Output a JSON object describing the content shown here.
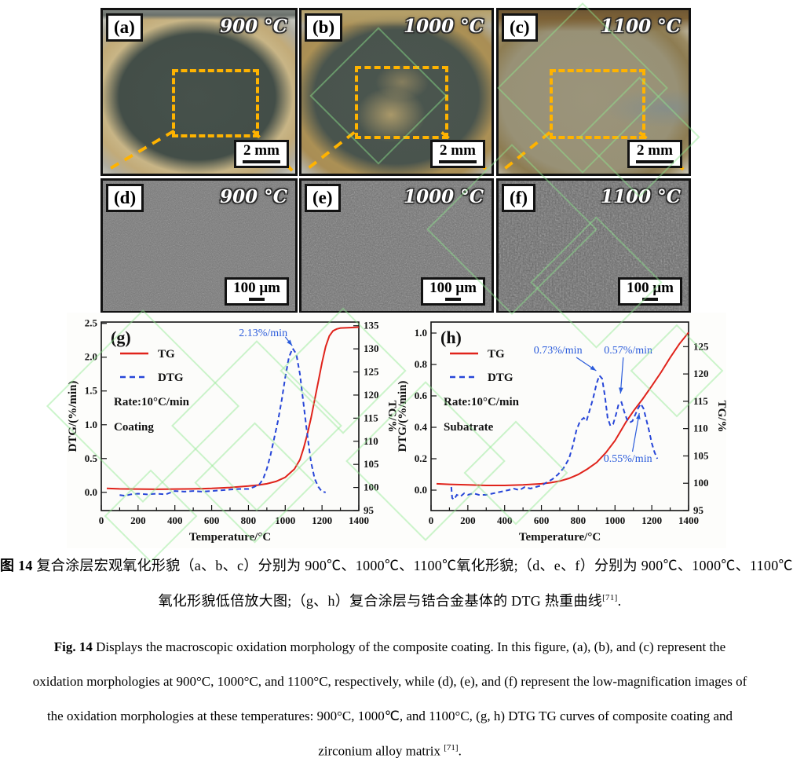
{
  "colors": {
    "dashed_box_orange": "#ffb300",
    "tg_red": "#e0231b",
    "dtg_blue": "#2746d8",
    "annotation_blue": "#2a5bdb",
    "watermark_green": "#8fe98f"
  },
  "figure": {
    "row1": [
      {
        "label": "(a)",
        "temp": "900 °C",
        "scale_bar": "2 mm"
      },
      {
        "label": "(b)",
        "temp": "1000 °C",
        "scale_bar": "2 mm"
      },
      {
        "label": "(c)",
        "temp": "1100 °C",
        "scale_bar": "2 mm"
      }
    ],
    "row2": [
      {
        "label": "(d)",
        "temp": "900 °C",
        "scale_bar": "100 μm"
      },
      {
        "label": "(e)",
        "temp": "1000 °C",
        "scale_bar": "100 μm"
      },
      {
        "label": "(f)",
        "temp": "1100 °C",
        "scale_bar": "100 μm"
      }
    ]
  },
  "chart_data": [
    {
      "id": "g",
      "type": "line",
      "panel_label": "(g)",
      "xlabel": "Temperature/°C",
      "ylabel_left": "DTG/(%/min)",
      "ylabel_right": "TG/%",
      "xlim": [
        0,
        1400
      ],
      "xticks": [
        0,
        200,
        400,
        600,
        800,
        1000,
        1200,
        1400
      ],
      "x_minor_step": 100,
      "ylim_left": [
        -0.27,
        2.52
      ],
      "yticks_left": [
        0.0,
        0.5,
        1.0,
        1.5,
        2.0,
        2.5
      ],
      "ytick_decimals": 1,
      "ylim_right": [
        95,
        135.8
      ],
      "yticks_right": [
        95,
        100,
        105,
        110,
        115,
        120,
        125,
        130,
        135
      ],
      "legend": {
        "tg": "TG",
        "dtg": "DTG",
        "rate": "Rate:10°C/min",
        "sample": "Coating"
      },
      "series": [
        {
          "name": "TG",
          "axis": "right",
          "color": "#e0231b",
          "style": "solid",
          "points": [
            [
              30,
              99.8
            ],
            [
              100,
              99.7
            ],
            [
              200,
              99.65
            ],
            [
              300,
              99.6
            ],
            [
              400,
              99.65
            ],
            [
              500,
              99.7
            ],
            [
              600,
              99.8
            ],
            [
              700,
              100.0
            ],
            [
              800,
              100.3
            ],
            [
              850,
              100.5
            ],
            [
              900,
              100.8
            ],
            [
              950,
              101.3
            ],
            [
              1000,
              102.2
            ],
            [
              1050,
              104.0
            ],
            [
              1080,
              106.0
            ],
            [
              1100,
              108.5
            ],
            [
              1120,
              111.5
            ],
            [
              1140,
              115.0
            ],
            [
              1160,
              119.0
            ],
            [
              1180,
              123.0
            ],
            [
              1200,
              127.0
            ],
            [
              1220,
              130.5
            ],
            [
              1240,
              132.8
            ],
            [
              1260,
              133.9
            ],
            [
              1280,
              134.3
            ],
            [
              1300,
              134.5
            ],
            [
              1350,
              134.6
            ],
            [
              1400,
              134.7
            ]
          ]
        },
        {
          "name": "DTG",
          "axis": "left",
          "color": "#2746d8",
          "style": "dashed",
          "points": [
            [
              100,
              -0.04
            ],
            [
              130,
              -0.05
            ],
            [
              160,
              -0.03
            ],
            [
              200,
              -0.02
            ],
            [
              250,
              -0.03
            ],
            [
              300,
              -0.02
            ],
            [
              350,
              -0.03
            ],
            [
              400,
              0.02
            ],
            [
              450,
              0.01
            ],
            [
              500,
              0.02
            ],
            [
              550,
              0.01
            ],
            [
              600,
              0.02
            ],
            [
              650,
              0.03
            ],
            [
              700,
              0.04
            ],
            [
              750,
              0.05
            ],
            [
              800,
              0.05
            ],
            [
              830,
              0.08
            ],
            [
              860,
              0.12
            ],
            [
              880,
              0.2
            ],
            [
              900,
              0.35
            ],
            [
              920,
              0.55
            ],
            [
              940,
              0.8
            ],
            [
              960,
              1.05
            ],
            [
              980,
              1.35
            ],
            [
              1000,
              1.7
            ],
            [
              1020,
              2.0
            ],
            [
              1040,
              2.13
            ],
            [
              1060,
              2.05
            ],
            [
              1080,
              1.75
            ],
            [
              1100,
              1.3
            ],
            [
              1120,
              0.85
            ],
            [
              1140,
              0.45
            ],
            [
              1160,
              0.2
            ],
            [
              1180,
              0.08
            ],
            [
              1200,
              0.01
            ],
            [
              1220,
              0.0
            ]
          ]
        }
      ],
      "annotations": [
        {
          "text": "2.13%/min",
          "tx": 880,
          "ty": 2.36,
          "x1": 1000,
          "y1": 2.3,
          "x2": 1038,
          "y2": 2.17
        }
      ]
    },
    {
      "id": "h",
      "type": "line",
      "panel_label": "(h)",
      "xlabel": "Temperature/°C",
      "ylabel_left": "DTG/(%/min)",
      "ylabel_right": "TG/%",
      "xlim": [
        0,
        1400
      ],
      "xticks": [
        0,
        200,
        400,
        600,
        800,
        1000,
        1200,
        1400
      ],
      "x_minor_step": 100,
      "ylim_left": [
        -0.13,
        1.07
      ],
      "yticks_left": [
        0.0,
        0.2,
        0.4,
        0.6,
        0.8,
        1.0
      ],
      "ytick_decimals": 1,
      "ylim_right": [
        95,
        129.5
      ],
      "yticks_right": [
        95,
        100,
        105,
        110,
        115,
        120,
        125
      ],
      "legend": {
        "tg": "TG",
        "dtg": "DTG",
        "rate": "Rate:10°C/min",
        "sample": "Subatrate"
      },
      "series": [
        {
          "name": "TG",
          "axis": "right",
          "color": "#e0231b",
          "style": "solid",
          "points": [
            [
              30,
              99.9
            ],
            [
              100,
              99.8
            ],
            [
              200,
              99.7
            ],
            [
              300,
              99.6
            ],
            [
              400,
              99.6
            ],
            [
              500,
              99.7
            ],
            [
              600,
              99.9
            ],
            [
              650,
              100.1
            ],
            [
              700,
              100.4
            ],
            [
              750,
              100.9
            ],
            [
              800,
              101.6
            ],
            [
              850,
              102.6
            ],
            [
              900,
              103.8
            ],
            [
              950,
              105.6
            ],
            [
              1000,
              107.8
            ],
            [
              1030,
              109.5
            ],
            [
              1060,
              111.2
            ],
            [
              1100,
              113.2
            ],
            [
              1150,
              115.4
            ],
            [
              1200,
              117.8
            ],
            [
              1250,
              120.3
            ],
            [
              1300,
              123.0
            ],
            [
              1350,
              125.5
            ],
            [
              1400,
              127.6
            ]
          ]
        },
        {
          "name": "DTG",
          "axis": "left",
          "color": "#2746d8",
          "style": "dashed",
          "points": [
            [
              110,
              0.02
            ],
            [
              115,
              -0.05
            ],
            [
              125,
              -0.06
            ],
            [
              140,
              -0.03
            ],
            [
              160,
              -0.04
            ],
            [
              180,
              -0.02
            ],
            [
              200,
              -0.03
            ],
            [
              230,
              -0.02
            ],
            [
              260,
              -0.03
            ],
            [
              300,
              -0.03
            ],
            [
              340,
              -0.02
            ],
            [
              380,
              -0.01
            ],
            [
              420,
              0.0
            ],
            [
              450,
              0.01
            ],
            [
              480,
              0.0
            ],
            [
              510,
              0.02
            ],
            [
              540,
              0.01
            ],
            [
              570,
              0.02
            ],
            [
              600,
              0.03
            ],
            [
              630,
              0.05
            ],
            [
              660,
              0.07
            ],
            [
              690,
              0.1
            ],
            [
              720,
              0.14
            ],
            [
              750,
              0.2
            ],
            [
              770,
              0.28
            ],
            [
              790,
              0.38
            ],
            [
              810,
              0.44
            ],
            [
              830,
              0.46
            ],
            [
              845,
              0.44
            ],
            [
              860,
              0.5
            ],
            [
              880,
              0.58
            ],
            [
              900,
              0.68
            ],
            [
              915,
              0.73
            ],
            [
              930,
              0.71
            ],
            [
              945,
              0.6
            ],
            [
              960,
              0.46
            ],
            [
              975,
              0.41
            ],
            [
              990,
              0.42
            ],
            [
              1005,
              0.48
            ],
            [
              1020,
              0.55
            ],
            [
              1035,
              0.56
            ],
            [
              1050,
              0.5
            ],
            [
              1065,
              0.45
            ],
            [
              1080,
              0.43
            ],
            [
              1095,
              0.44
            ],
            [
              1110,
              0.48
            ],
            [
              1125,
              0.52
            ],
            [
              1140,
              0.55
            ],
            [
              1155,
              0.52
            ],
            [
              1170,
              0.45
            ],
            [
              1185,
              0.38
            ],
            [
              1200,
              0.3
            ],
            [
              1215,
              0.24
            ],
            [
              1230,
              0.2
            ]
          ]
        }
      ],
      "annotations": [
        {
          "text": "0.73%/min",
          "tx": 690,
          "ty": 0.89,
          "x1": 790,
          "y1": 0.845,
          "x2": 898,
          "y2": 0.76
        },
        {
          "text": "0.57%/min",
          "tx": 1072,
          "ty": 0.89,
          "x1": 1045,
          "y1": 0.845,
          "x2": 1030,
          "y2": 0.615
        },
        {
          "text": "0.55%/min",
          "tx": 1070,
          "ty": 0.2,
          "x1": 1095,
          "y1": 0.245,
          "x2": 1132,
          "y2": 0.49
        }
      ]
    }
  ],
  "caption": {
    "zh_prefix": "图 14",
    "zh_line1_rest": " 复合涂层宏观氧化形貌（a、b、c）分别为 900℃、1000℃、1100℃氧化形貌;（d、e、f）分别为 900℃、1000℃、1100℃",
    "zh_line2_pre": "氧化形貌低倍放大图;（g、h）复合涂层与锆合金基体的 DTG 热重曲线",
    "zh_ref": "[71]",
    "zh_period": ".",
    "en_prefix": "Fig. 14",
    "en_line1_rest": " Displays the macroscopic oxidation morphology of the composite coating. In this figure, (a), (b), and (c) represent the",
    "en_line2": "oxidation morphologies at 900°C, 1000°C, and 1100°C, respectively, while (d), (e), and (f) represent the low-magnification images of",
    "en_line3": "the oxidation morphologies at these temperatures: 900°C, 1000℃, and 1100°C, (g, h) DTG TG curves of composite coating and",
    "en_line4_pre": "zirconium alloy matrix ",
    "en_ref": "[71]",
    "en_period": "."
  }
}
